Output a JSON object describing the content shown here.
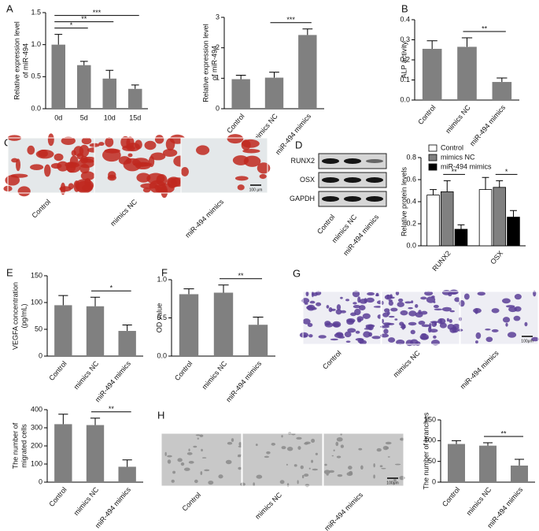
{
  "chart_data": [
    {
      "type": "bar",
      "panel": "A",
      "ylabel": [
        "Relative expression level",
        "of miR-494"
      ],
      "categories": [
        "0d",
        "5d",
        "10d",
        "15d"
      ],
      "values": [
        1.0,
        0.68,
        0.47,
        0.31
      ],
      "errors": [
        0.16,
        0.06,
        0.13,
        0.06
      ],
      "color": "#808080",
      "ylim": [
        0,
        1.5
      ],
      "yticks": [
        {
          "value": 0,
          "label": "0.0"
        },
        0.5,
        {
          "value": 1,
          "label": "1.0"
        },
        1.5
      ],
      "significance": [
        {
          "from": 0,
          "to": 1,
          "label": "*"
        },
        {
          "from": 0,
          "to": 2,
          "label": "**"
        },
        {
          "from": 0,
          "to": 3,
          "label": "***"
        }
      ]
    },
    {
      "type": "bar",
      "ylabel": [
        "Relative expression level",
        "of miR-494"
      ],
      "categories": [
        "Control",
        "mimics NC",
        "miR-494 mimics"
      ],
      "values": [
        0.97,
        1.02,
        2.42
      ],
      "errors": [
        0.13,
        0.18,
        0.2
      ],
      "color": "#808080",
      "ylim": [
        0,
        3
      ],
      "yticks": [
        0,
        1,
        2,
        3
      ],
      "significance": [
        {
          "from": 1,
          "to": 2,
          "label": "***"
        }
      ]
    },
    {
      "type": "bar",
      "panel": "B",
      "ylabel": [
        "ALP activity"
      ],
      "categories": [
        "Control",
        "mimics NC",
        "miR-494 mimics"
      ],
      "values": [
        0.255,
        0.265,
        0.09
      ],
      "errors": [
        0.04,
        0.045,
        0.02
      ],
      "color": "#808080",
      "ylim": [
        0,
        0.4
      ],
      "yticks": [
        {
          "value": 0,
          "label": "0.0"
        },
        0.1,
        0.2,
        0.3,
        0.4
      ],
      "significance": [
        {
          "from": 1,
          "to": 2,
          "label": "**"
        }
      ]
    },
    {
      "type": "grouped_bar",
      "ylabel": [
        "Relative protein levels"
      ],
      "categories": [
        "RUNX2",
        "OSX"
      ],
      "series": [
        {
          "name": "Control",
          "color": "#ffffff",
          "values": [
            0.46,
            0.51
          ],
          "errors": [
            0.05,
            0.11
          ]
        },
        {
          "name": "mimics NC",
          "color": "#808080",
          "values": [
            0.49,
            0.53
          ],
          "errors": [
            0.1,
            0.06
          ]
        },
        {
          "name": "miR-494 mimics",
          "color": "#000000",
          "values": [
            0.15,
            0.26
          ],
          "errors": [
            0.04,
            0.06
          ]
        }
      ],
      "ylim": [
        0,
        0.8
      ],
      "yticks": [
        {
          "value": 0,
          "label": "0.0"
        },
        0.2,
        0.4,
        0.6,
        0.8
      ],
      "significance": [
        {
          "category": 0,
          "from": 1,
          "to": 2,
          "label": "**"
        },
        {
          "category": 1,
          "from": 1,
          "to": 2,
          "label": "*"
        }
      ]
    },
    {
      "type": "bar",
      "panel": "E",
      "ylabel": [
        "VEGFA concentration",
        "(pg/mL)"
      ],
      "categories": [
        "Control",
        "mimics NC",
        "miR-494 mimics"
      ],
      "values": [
        95,
        93,
        47
      ],
      "errors": [
        18,
        17,
        11
      ],
      "color": "#808080",
      "ylim": [
        0,
        150
      ],
      "yticks": [
        0,
        50,
        100,
        150
      ],
      "significance": [
        {
          "from": 1,
          "to": 2,
          "label": "*"
        }
      ]
    },
    {
      "type": "bar",
      "panel": "F",
      "ylabel": [
        "OD value"
      ],
      "categories": [
        "Control",
        "mimics NC",
        "miR-494 mimics"
      ],
      "values": [
        0.81,
        0.83,
        0.41
      ],
      "errors": [
        0.07,
        0.1,
        0.1
      ],
      "color": "#808080",
      "ylim": [
        0,
        1
      ],
      "yticks": [
        {
          "value": 0,
          "label": "0.0"
        },
        0.5,
        {
          "value": 1,
          "label": "1.0"
        }
      ],
      "significance": [
        {
          "from": 1,
          "to": 2,
          "label": "**"
        }
      ]
    },
    {
      "type": "bar",
      "ylabel": [
        "The number of",
        "migrated cells"
      ],
      "categories": [
        "Control",
        "mimics NC",
        "miR-494 mimics"
      ],
      "values": [
        320,
        315,
        85
      ],
      "errors": [
        55,
        38,
        38
      ],
      "color": "#808080",
      "ylim": [
        0,
        400
      ],
      "yticks": [
        0,
        100,
        200,
        300,
        400
      ],
      "significance": [
        {
          "from": 1,
          "to": 2,
          "label": "**"
        }
      ]
    },
    {
      "type": "bar",
      "ylabel": [
        "The number of branches"
      ],
      "categories": [
        "Control",
        "mimics NC",
        "miR-494 mimics"
      ],
      "values": [
        92,
        88,
        40
      ],
      "errors": [
        8,
        7,
        15
      ],
      "color": "#808080",
      "ylim": [
        0,
        150
      ],
      "yticks": [
        0,
        50,
        100,
        150
      ],
      "significance": [
        {
          "from": 1,
          "to": 2,
          "label": "**"
        }
      ]
    }
  ],
  "images": [
    {
      "panel": "C",
      "labels": [
        "Control",
        "mimics NC",
        "miR-494 mimics"
      ],
      "scale_bar": "100 μm"
    },
    {
      "panel": "G",
      "labels": [
        "Control",
        "mimics NC",
        "miR-494 mimics"
      ],
      "scale_bar": "100μm"
    },
    {
      "panel": "H",
      "labels": [
        "Control",
        "mimics NC",
        "miR-494 mimics"
      ],
      "scale_bar": "100μm"
    }
  ],
  "blot": {
    "panel": "D",
    "rows": [
      "RUNX2",
      "OSX",
      "GAPDH"
    ],
    "columns": [
      "Control",
      "mimics NC",
      "miR-494 mimics"
    ]
  }
}
